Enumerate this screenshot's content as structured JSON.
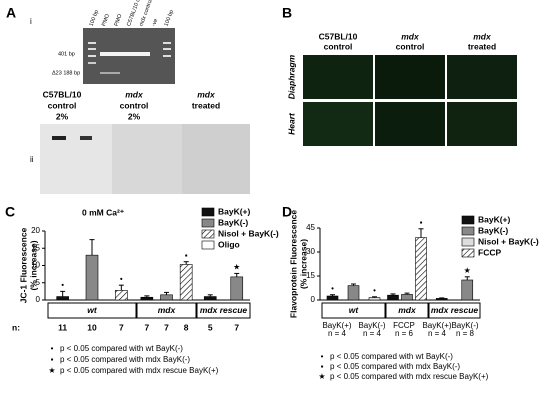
{
  "panel_a": {
    "label": "A",
    "sub_i": "i",
    "lanes": [
      "100 bp",
      "PMO",
      "PMO",
      "C57BL/10 control",
      "mdx control",
      "-ve",
      "100 bp"
    ],
    "band_labels": [
      "401 bp",
      "Δ23 188 bp"
    ],
    "sub_ii": "ii",
    "blot_columns": [
      {
        "name": "C57BL/10",
        "sub": "control",
        "pct": "2%"
      },
      {
        "name": "mdx",
        "sub": "control",
        "pct": "2%"
      },
      {
        "name": "mdx",
        "sub": "treated"
      }
    ]
  },
  "panel_b": {
    "label": "B",
    "columns": [
      {
        "name": "C57BL/10",
        "sub": "control"
      },
      {
        "name": "mdx",
        "sub": "control"
      },
      {
        "name": "mdx",
        "sub": "treated"
      }
    ],
    "rows": [
      "Diaphragm",
      "Heart"
    ]
  },
  "chart_data": [
    {
      "type": "bar",
      "panel_label": "C",
      "title": "0 mM Ca²⁺",
      "y_label": [
        "JC-1 Fluorescence",
        "(% increase)"
      ],
      "categories": [
        "wt",
        "mdx",
        "mdx rescue"
      ],
      "ylim": [
        0,
        20
      ],
      "yticks": [
        0,
        5,
        10,
        15,
        20
      ],
      "n_label": "n:",
      "series": [
        {
          "name": "BayK(+)",
          "color": "#111111",
          "values": [
            1.0,
            0.8,
            1.0
          ],
          "errors": [
            1.5,
            0.4,
            0.5
          ],
          "n": [
            11,
            7,
            5
          ],
          "symbols": [
            "•",
            null,
            null
          ]
        },
        {
          "name": "BayK(-)",
          "color": "#888888",
          "values": [
            13,
            1.5,
            6.7
          ],
          "errors": [
            4.5,
            0.7,
            1.0
          ],
          "n": [
            10,
            7,
            7
          ],
          "symbols": [
            null,
            null,
            "★"
          ]
        },
        {
          "name": "Nisol + BayK(-)",
          "color": "#ffffff",
          "fill_style": "hatch",
          "values": [
            2.8,
            10.3,
            null
          ],
          "errors": [
            1.5,
            0.8,
            null
          ],
          "n": [
            7,
            8,
            null
          ],
          "symbols": [
            "•",
            "▪",
            null
          ]
        },
        {
          "name": "Oligo",
          "color": "#ffffff",
          "values": [
            null,
            null,
            null
          ],
          "errors": [
            null,
            null,
            null
          ],
          "n": [
            null,
            null,
            null
          ],
          "symbols": [
            null,
            null,
            null
          ]
        }
      ],
      "footnotes": [
        {
          "symbol": "•",
          "text": "p < 0.05 compared with wt BayK(-)"
        },
        {
          "symbol": "▪",
          "text": "p < 0.05 compared with mdx BayK(-)"
        },
        {
          "symbol": "★",
          "text": "p < 0.05 compared with mdx rescue BayK(+)"
        }
      ]
    },
    {
      "type": "bar",
      "panel_label": "D",
      "y_label": [
        "Flavoprotein Fluorescence",
        "(% increase)"
      ],
      "categories": [
        "wt",
        "mdx",
        "mdx rescue"
      ],
      "ylim": [
        0,
        45
      ],
      "yticks": [
        0,
        15,
        30,
        45
      ],
      "series": [
        {
          "name": "BayK(+)",
          "color": "#111111",
          "values": [
            2.5,
            3,
            1
          ],
          "errors": [
            0.8,
            0.8,
            0.3
          ],
          "symbols": [
            "•",
            null,
            null
          ]
        },
        {
          "name": "BayK(-)",
          "color": "#888888",
          "values": [
            9,
            3.5,
            12.5
          ],
          "errors": [
            1,
            0.8,
            2
          ],
          "symbols": [
            null,
            null,
            "★"
          ]
        },
        {
          "name": "Nisol + BayK(-)",
          "color": "#dddddd",
          "values": [
            1.5,
            null,
            null
          ],
          "errors": [
            0.5,
            null,
            null
          ],
          "symbols": [
            "•",
            null,
            null
          ]
        },
        {
          "name": "FCCP",
          "color": "#ffffff",
          "fill_style": "hatch",
          "values": [
            null,
            39,
            null
          ],
          "errors": [
            null,
            5.5,
            null
          ],
          "symbols": [
            null,
            "▪",
            null
          ]
        }
      ],
      "sub_labels": [
        {
          "name": "BayK(+)",
          "n": "n = 4"
        },
        {
          "name": "BayK(-)",
          "n": "n = 4"
        },
        {
          "name": "FCCP",
          "n": "n = 6"
        },
        {
          "name": "BayK(+)",
          "n": "n = 4"
        },
        {
          "name": "BayK(-)",
          "n": "n = 8"
        }
      ],
      "footnotes": [
        {
          "symbol": "•",
          "text": "p < 0.05 compared with wt BayK(-)"
        },
        {
          "symbol": "▪",
          "text": "p < 0.05 compared with mdx BayK(-)"
        },
        {
          "symbol": "★",
          "text": "p < 0.05 compared with mdx rescue BayK(+)"
        }
      ]
    }
  ]
}
